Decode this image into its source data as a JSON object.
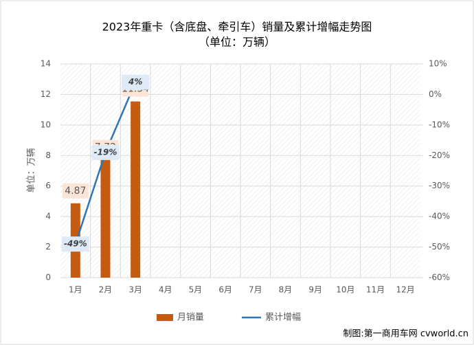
{
  "chart_data": {
    "type": "bar",
    "title": "2023年重卡（含底盘、牵引车）销量及累计增幅走势图",
    "subtitle": "（单位：万辆）",
    "y_label": "单位：万辆",
    "source": "制图:第一商用车网 cvworld.cn",
    "categories": [
      "1月",
      "2月",
      "3月",
      "4月",
      "5月",
      "6月",
      "7月",
      "8月",
      "9月",
      "10月",
      "11月",
      "12月"
    ],
    "series": [
      {
        "name": "月销量",
        "type": "bar",
        "color": "#c55a11",
        "values": [
          4.87,
          7.72,
          11.54,
          null,
          null,
          null,
          null,
          null,
          null,
          null,
          null,
          null
        ]
      },
      {
        "name": "累计增幅",
        "type": "line",
        "axis": "y2",
        "color": "#2e75b6",
        "values": [
          -49,
          -19,
          4,
          null,
          null,
          null,
          null,
          null,
          null,
          null,
          null,
          null
        ],
        "value_labels": [
          "-49%",
          "-19%",
          "4%",
          null,
          null,
          null,
          null,
          null,
          null,
          null,
          null,
          null
        ]
      }
    ],
    "ylim": [
      0,
      14
    ],
    "yticks": [
      0,
      2,
      4,
      6,
      8,
      10,
      12,
      14
    ],
    "y2lim": [
      -60,
      10
    ],
    "y2ticks": [
      {
        "value": -60,
        "label": "-60%"
      },
      {
        "value": -50,
        "label": "-50%"
      },
      {
        "value": -40,
        "label": "-40%"
      },
      {
        "value": -30,
        "label": "-30%"
      },
      {
        "value": -20,
        "label": "-20%"
      },
      {
        "value": -10,
        "label": "-10%"
      },
      {
        "value": 0,
        "label": "0%"
      },
      {
        "value": 10,
        "label": "10%"
      }
    ],
    "grid": true,
    "legend": "bottom"
  }
}
